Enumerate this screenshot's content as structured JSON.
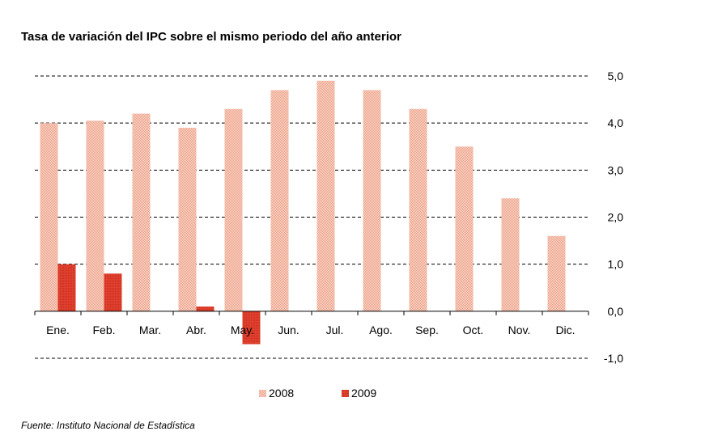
{
  "chart_data": {
    "type": "bar",
    "title": "Tasa de variación del IPC sobre el mismo periodo del año anterior",
    "source": "Fuente: Instituto Nacional de Estadística",
    "categories": [
      "Ene.",
      "Feb.",
      "Mar.",
      "Abr.",
      "May.",
      "Jun.",
      "Jul.",
      "Ago.",
      "Sep.",
      "Oct.",
      "Nov.",
      "Dic."
    ],
    "series": [
      {
        "name": "2008",
        "color": "#f4bfab",
        "values": [
          4.0,
          4.05,
          4.2,
          3.9,
          4.3,
          4.7,
          4.9,
          4.7,
          4.3,
          3.5,
          2.4,
          1.6
        ]
      },
      {
        "name": "2009",
        "color": "#dd3a2a",
        "values": [
          1.0,
          0.8,
          null,
          0.1,
          -0.7,
          null,
          null,
          null,
          null,
          null,
          null,
          null
        ]
      }
    ],
    "yticks": [
      "5,0",
      "4,0",
      "3,0",
      "2,0",
      "1,0",
      "0,0",
      "-1,0"
    ],
    "ylim": [
      -1,
      5
    ],
    "grid": true,
    "legend_position": "bottom"
  }
}
